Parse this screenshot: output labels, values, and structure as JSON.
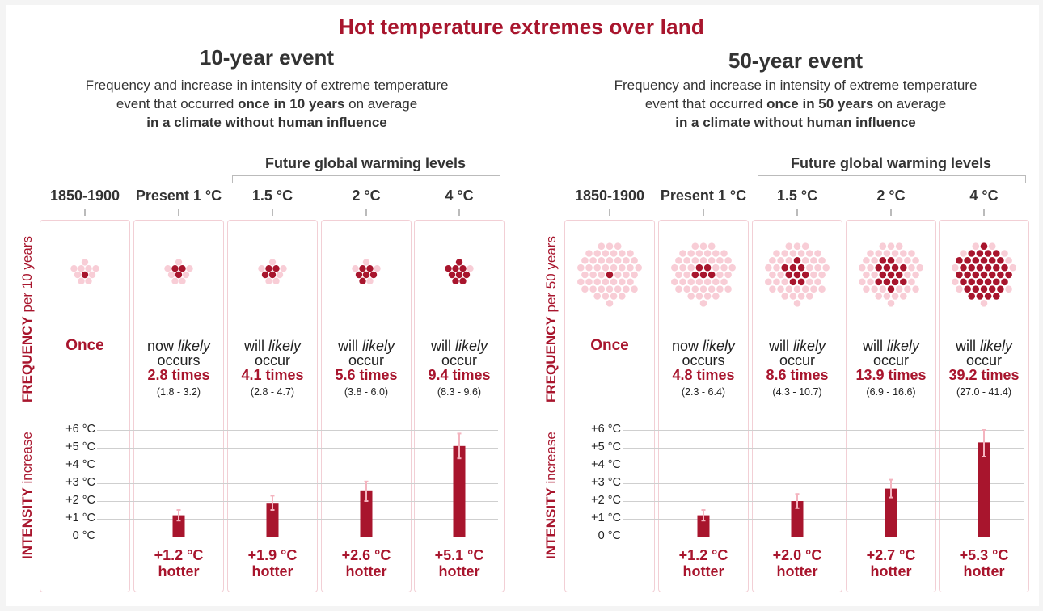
{
  "title": "Hot temperature extremes over land",
  "colors": {
    "accent": "#a8152d",
    "dot_light": "#f8cdd6",
    "dot_dark": "#a8152d",
    "err": "#f4b4bf"
  },
  "panels": [
    {
      "event_title": "10-year event",
      "desc_line1": "Frequency and increase in intensity of extreme temperature",
      "desc_line2_pre": "event that occurred ",
      "desc_line2_bold": "once in 10 years",
      "desc_line2_post": " on average",
      "desc_line3": "in a climate without human influence",
      "future_label": "Future global warming levels",
      "freq_label_bold": "FREQUENCY",
      "freq_label_rest": " per 10 years",
      "intensity_label_bold": "INTENSITY",
      "intensity_label_rest": " increase",
      "columns": [
        {
          "head": "1850-1900",
          "freq_once": "Once"
        },
        {
          "head": "Present 1 °C",
          "freq_pre": "now ",
          "freq_it": "likely",
          "freq_line2": "occurs",
          "times": "2.8 times",
          "range": "(1.8 - 3.2)",
          "hotter_value": "+1.2 °C",
          "hotter_word": "hotter"
        },
        {
          "head": "1.5 °C",
          "freq_pre": "will ",
          "freq_it": "likely",
          "freq_line2": "occur",
          "times": "4.1 times",
          "range": "(2.8 - 4.7)",
          "hotter_value": "+1.9 °C",
          "hotter_word": "hotter"
        },
        {
          "head": "2 °C",
          "freq_pre": "will ",
          "freq_it": "likely",
          "freq_line2": "occur",
          "times": "5.6 times",
          "range": "(3.8 - 6.0)",
          "hotter_value": "+2.6 °C",
          "hotter_word": "hotter"
        },
        {
          "head": "4 °C",
          "freq_pre": "will ",
          "freq_it": "likely",
          "freq_line2": "occur",
          "times": "9.4 times",
          "range": "(8.3 - 9.6)",
          "hotter_value": "+5.1 °C",
          "hotter_word": "hotter"
        }
      ]
    },
    {
      "event_title": "50-year event",
      "desc_line1": "Frequency and increase in intensity of extreme temperature",
      "desc_line2_pre": "event that occurred ",
      "desc_line2_bold": "once in 50 years",
      "desc_line2_post": " on average",
      "desc_line3": "in a climate without human influence",
      "future_label": "Future global warming levels",
      "freq_label_bold": "FREQUENCY",
      "freq_label_rest": " per 50 years",
      "intensity_label_bold": "INTENSITY",
      "intensity_label_rest": " increase",
      "columns": [
        {
          "head": "1850-1900",
          "freq_once": "Once"
        },
        {
          "head": "Present 1 °C",
          "freq_pre": "now ",
          "freq_it": "likely",
          "freq_line2": "occurs",
          "times": "4.8 times",
          "range": "(2.3 - 6.4)",
          "hotter_value": "+1.2 °C",
          "hotter_word": "hotter"
        },
        {
          "head": "1.5 °C",
          "freq_pre": "will ",
          "freq_it": "likely",
          "freq_line2": "occur",
          "times": "8.6 times",
          "range": "(4.3 - 10.7)",
          "hotter_value": "+2.0 °C",
          "hotter_word": "hotter"
        },
        {
          "head": "2 °C",
          "freq_pre": "will ",
          "freq_it": "likely",
          "freq_line2": "occur",
          "times": "13.9 times",
          "range": "(6.9 - 16.6)",
          "hotter_value": "+2.7 °C",
          "hotter_word": "hotter"
        },
        {
          "head": "4 °C",
          "freq_pre": "will ",
          "freq_it": "likely",
          "freq_line2": "occur",
          "times": "39.2 times",
          "range": "(27.0 - 41.4)",
          "hotter_value": "+5.3 °C",
          "hotter_word": "hotter"
        }
      ]
    }
  ],
  "chart_data": [
    {
      "type": "bar",
      "title": "10-year event",
      "ylabel": "INTENSITY increase",
      "yticks": [
        "+6 °C",
        "+5 °C",
        "+4 °C",
        "+3 °C",
        "+2 °C",
        "+1 °C",
        "0 °C"
      ],
      "ylim": [
        0,
        6
      ],
      "categories": [
        "1850-1900",
        "Present 1 °C",
        "1.5 °C",
        "2 °C",
        "4 °C"
      ],
      "values": [
        0,
        1.2,
        1.9,
        2.6,
        5.1
      ],
      "err_low": [
        0,
        0.9,
        1.5,
        2.0,
        4.4
      ],
      "err_high": [
        0,
        1.5,
        2.3,
        3.1,
        5.8
      ],
      "frequency_dots_total": 10,
      "frequency_dots_dark": [
        1,
        3,
        4,
        6,
        9
      ]
    },
    {
      "type": "bar",
      "title": "50-year event",
      "ylabel": "INTENSITY increase",
      "yticks": [
        "+6 °C",
        "+5 °C",
        "+4 °C",
        "+3 °C",
        "+2 °C",
        "+1 °C",
        "0 °C"
      ],
      "ylim": [
        0,
        6
      ],
      "categories": [
        "1850-1900",
        "Present 1 °C",
        "1.5 °C",
        "2 °C",
        "4 °C"
      ],
      "values": [
        0,
        1.2,
        2.0,
        2.7,
        5.3
      ],
      "err_low": [
        0,
        0.9,
        1.6,
        2.2,
        4.5
      ],
      "err_high": [
        0,
        1.5,
        2.4,
        3.2,
        6.0
      ],
      "frequency_dots_total": 50,
      "frequency_dots_dark": [
        1,
        5,
        9,
        14,
        39
      ]
    }
  ]
}
